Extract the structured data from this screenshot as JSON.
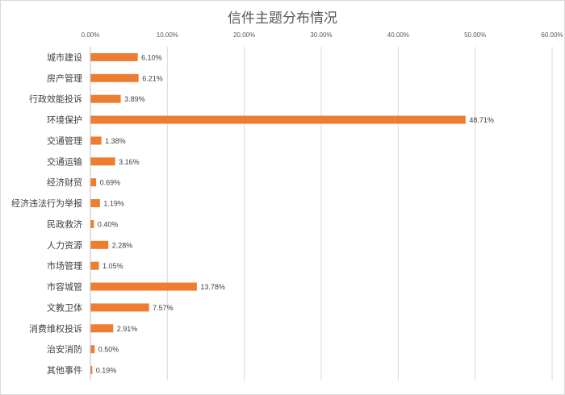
{
  "chart_data": {
    "type": "bar",
    "orientation": "horizontal",
    "title": "信件主题分布情况",
    "xlabel": "",
    "ylabel": "",
    "xlim": [
      0,
      60
    ],
    "x_ticks": [
      "0.00%",
      "10.00%",
      "20.00%",
      "30.00%",
      "40.00%",
      "50.00%",
      "60.00%"
    ],
    "x_axis_position": "top",
    "grid": true,
    "legend": "none",
    "bar_color": "#ed7d31",
    "categories": [
      "城市建设",
      "房产管理",
      "行政效能投诉",
      "环境保护",
      "交通管理",
      "交通运输",
      "经济财贸",
      "经济违法行为举报",
      "民政救济",
      "人力资源",
      "市场管理",
      "市容城管",
      "文教卫体",
      "消费维权投诉",
      "治安消防",
      "其他事件"
    ],
    "values": [
      6.1,
      6.21,
      3.89,
      48.71,
      1.38,
      3.16,
      0.69,
      1.19,
      0.4,
      2.28,
      1.05,
      13.78,
      7.57,
      2.91,
      0.5,
      0.19
    ],
    "labels": [
      "6.10%",
      "6.21%",
      "3.89%",
      "48.71%",
      "1.38%",
      "3.16%",
      "0.69%",
      "1.19%",
      "0.40%",
      "2.28%",
      "1.05%",
      "13.78%",
      "7.57%",
      "2.91%",
      "0.50%",
      "0.19%"
    ]
  }
}
